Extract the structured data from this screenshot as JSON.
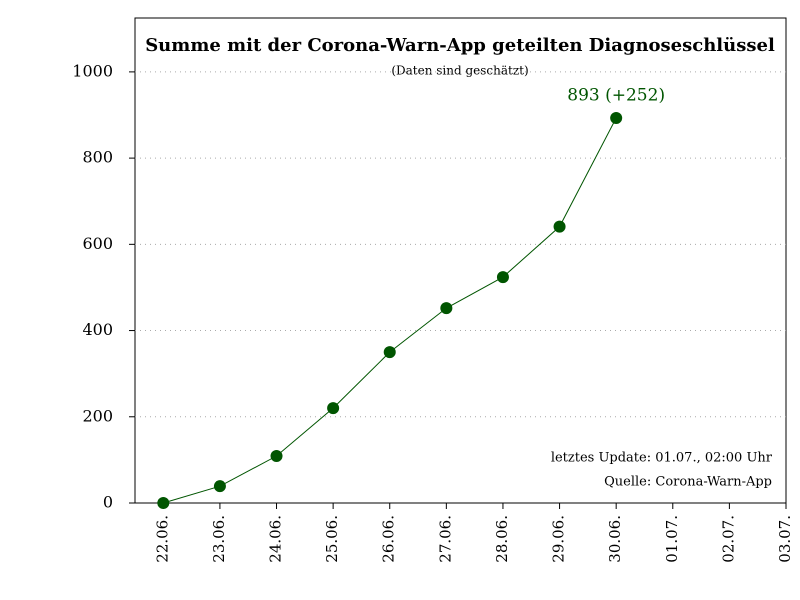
{
  "chart_data": {
    "type": "line",
    "title": "Summe mit der Corona-Warn-App geteilten Diagnoseschlüssel",
    "subtitle": "(Daten sind geschätzt)",
    "annotation": "893 (+252)",
    "notes": [
      "letztes Update: 01.07., 02:00 Uhr",
      "Quelle: Corona-Warn-App"
    ],
    "categories": [
      "22.06.",
      "23.06.",
      "24.06.",
      "25.06.",
      "26.06.",
      "27.06.",
      "28.06.",
      "29.06.",
      "30.06.",
      "01.07.",
      "02.07.",
      "03.07."
    ],
    "series": [
      {
        "name": "Diagnoseschlüssel",
        "color": "#005500",
        "values": [
          0,
          39,
          109,
          220,
          350,
          452,
          524,
          641,
          893,
          null,
          null,
          null
        ]
      }
    ],
    "ylim": [
      0,
      1125
    ],
    "yticks": [
      0,
      200,
      400,
      600,
      800,
      1000
    ],
    "grid": true
  }
}
